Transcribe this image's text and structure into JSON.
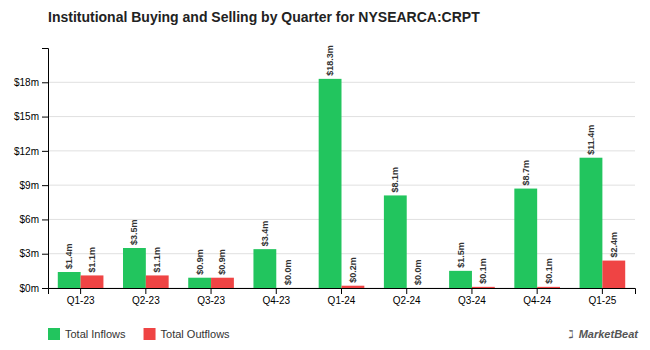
{
  "chart_data": {
    "type": "bar",
    "title": "Institutional Buying and Selling by Quarter for NYSEARCA:CRPT",
    "categories": [
      "Q1-23",
      "Q2-23",
      "Q3-23",
      "Q4-23",
      "Q1-24",
      "Q2-24",
      "Q3-24",
      "Q4-24",
      "Q1-25"
    ],
    "series": [
      {
        "name": "Total Inflows",
        "color": "#22c55e",
        "values": [
          1.4,
          3.5,
          0.9,
          3.4,
          18.3,
          8.1,
          1.5,
          8.7,
          11.4
        ],
        "value_labels": [
          "$1.4m",
          "$3.5m",
          "$0.9m",
          "$3.4m",
          "$18.3m",
          "$8.1m",
          "$1.5m",
          "$8.7m",
          "$11.4m"
        ]
      },
      {
        "name": "Total Outflows",
        "color": "#ef4444",
        "values": [
          1.1,
          1.1,
          0.9,
          0.0,
          0.2,
          0.0,
          0.1,
          0.1,
          2.4
        ],
        "value_labels": [
          "$1.1m",
          "$1.1m",
          "$0.9m",
          "$0.0m",
          "$0.2m",
          "$0.0m",
          "$0.1m",
          "$0.1m",
          "$2.4m"
        ]
      }
    ],
    "ylim": [
      0,
      21
    ],
    "yticks": [
      {
        "value": 0,
        "label": "$0m"
      },
      {
        "value": 3,
        "label": "$3m"
      },
      {
        "value": 6,
        "label": "$6m"
      },
      {
        "value": 9,
        "label": "$9m"
      },
      {
        "value": 12,
        "label": "$12m"
      },
      {
        "value": 15,
        "label": "$15m"
      },
      {
        "value": 18,
        "label": "$18m"
      }
    ],
    "grid": true,
    "legend": "lower left",
    "data_labels": true,
    "annotations": [
      "ℷ",
      "MarketBeat"
    ]
  }
}
